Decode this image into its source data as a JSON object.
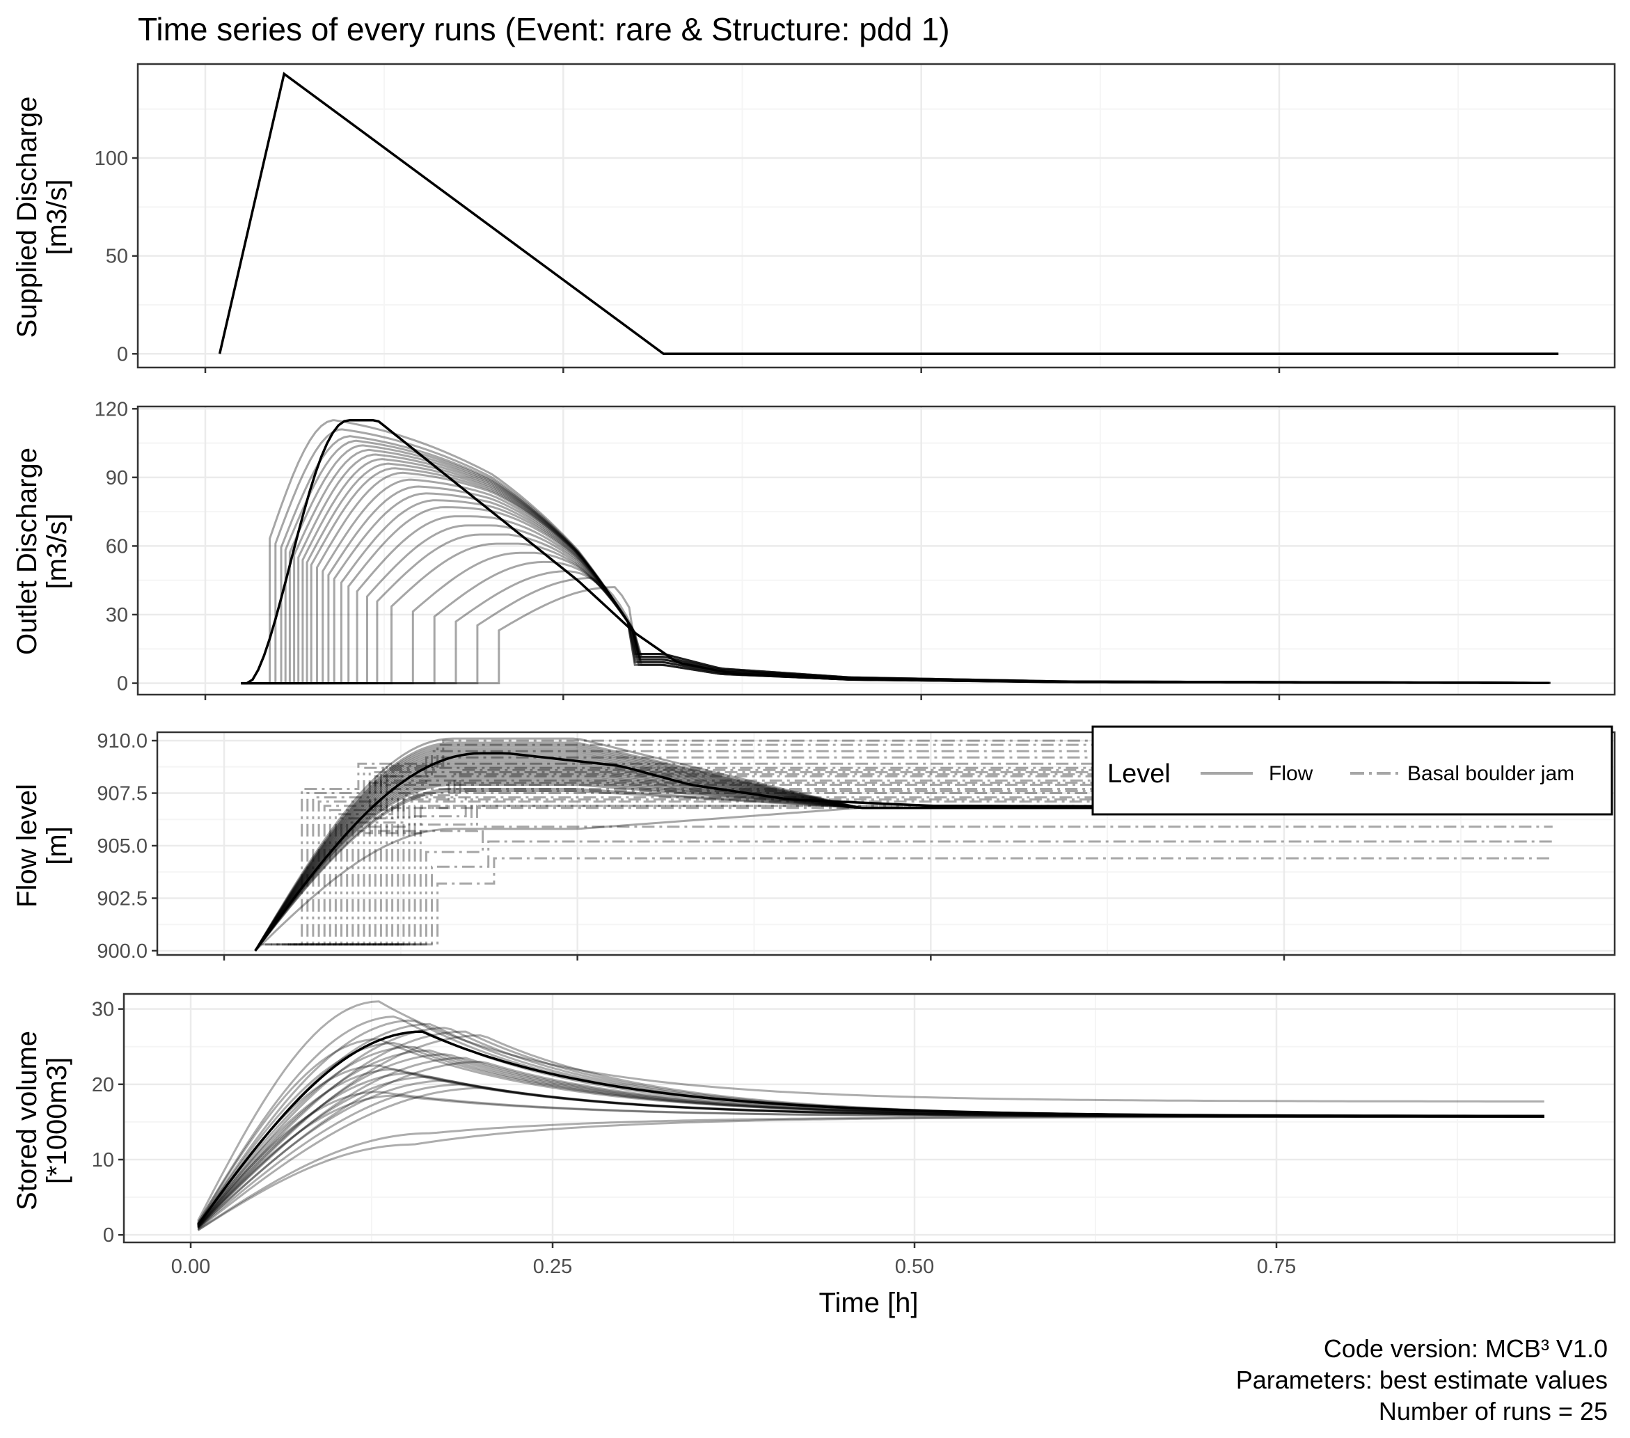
{
  "chart_data": {
    "type": "line",
    "title": "Time series of every runs (Event: rare & Structure: pdd 1)",
    "xlabel": "Time [h]",
    "xlim": [
      0,
      0.93
    ],
    "x_ticks": [
      0.0,
      0.25,
      0.5,
      0.75
    ],
    "x_tick_labels": [
      "0.00",
      "0.25",
      "0.50",
      "0.75"
    ],
    "number_of_runs": 25,
    "grid": true,
    "caption": [
      "Code version: MCB³ V1.0",
      "Parameters:  best estimate values",
      "Number of runs = 25"
    ],
    "panels": [
      {
        "ylabel": [
          "Supplied Discharge",
          "[m3/s]"
        ],
        "y_ticks": [
          0,
          50,
          100
        ],
        "y_tick_labels": [
          "0",
          "50",
          "100"
        ],
        "ylim": [
          -7,
          148
        ],
        "series": [
          {
            "style": "solid",
            "x": [
              0.01,
              0.055,
              0.32,
              0.945
            ],
            "y": [
              0,
              143,
              0,
              0
            ]
          }
        ]
      },
      {
        "ylabel": [
          "Outlet Discharge",
          "[m3/s]"
        ],
        "y_ticks": [
          0,
          30,
          60,
          90,
          120
        ],
        "y_tick_labels": [
          "0",
          "30",
          "60",
          "90",
          "120"
        ],
        "ylim": [
          -5,
          121
        ],
        "runs": {
          "t_release": [
            0.045,
            0.049,
            0.053,
            0.056,
            0.059,
            0.062,
            0.065,
            0.068,
            0.071,
            0.074,
            0.078,
            0.082,
            0.086,
            0.09,
            0.095,
            0.1,
            0.106,
            0.113,
            0.12,
            0.13,
            0.145,
            0.16,
            0.175,
            0.19,
            0.205
          ],
          "peak": [
            115,
            111,
            108,
            106,
            104,
            102,
            100,
            98,
            96,
            94,
            92,
            89,
            86,
            83,
            80,
            77,
            73,
            69,
            65,
            61,
            57,
            53,
            49,
            46,
            42
          ],
          "recession": [
            [
              0.32,
              8
            ],
            [
              0.36,
              4
            ],
            [
              0.45,
              1.6
            ],
            [
              0.6,
              0.5
            ],
            [
              0.94,
              0.1
            ]
          ]
        }
      },
      {
        "ylabel": [
          "Flow level",
          "[m]"
        ],
        "y_ticks": [
          900.0,
          902.5,
          905.0,
          907.5,
          910.0
        ],
        "y_tick_labels": [
          "900.0",
          "902.5",
          "905.0",
          "907.5",
          "910.0"
        ],
        "ylim": [
          899.8,
          910.4
        ],
        "runs": {
          "flow_peak": [
            909.8,
            909.6,
            909.5,
            909.3,
            909.2,
            909.0,
            908.8,
            908.7,
            908.5,
            908.3,
            908.1,
            907.9,
            907.7,
            907.6,
            910.1,
            909.9,
            909.7,
            909.4,
            909.1,
            908.9,
            908.6,
            908.4,
            908.2,
            905.8,
            908.0
          ],
          "jam_level": [
            908.9,
            908.7,
            908.5,
            908.3,
            908.1,
            907.9,
            907.7,
            907.5,
            907.3,
            907.1,
            906.9,
            906.8,
            909.2,
            909.5,
            909.8,
            910.0,
            908.0,
            908.4,
            908.6,
            907.6,
            907.2,
            906.9,
            905.9,
            905.2,
            904.4
          ]
        }
      },
      {
        "ylabel": [
          "Stored volume",
          "[*1000m3]"
        ],
        "y_ticks": [
          0,
          10,
          20,
          30
        ],
        "y_tick_labels": [
          "0",
          "10",
          "20",
          "30"
        ],
        "ylim": [
          -1,
          32
        ],
        "runs": {
          "peak": [
            31,
            29,
            28.5,
            28,
            27.5,
            27,
            26.5,
            26,
            25.5,
            25,
            24.5,
            24,
            23.5,
            23,
            22.5,
            22,
            21.5,
            21,
            20.5,
            20,
            19.5,
            19,
            18.5,
            12,
            13.5
          ],
          "final": [
            17.7,
            15.8,
            15.8,
            15.7,
            15.7,
            15.7,
            15.7,
            15.8,
            15.8,
            15.7,
            15.7,
            15.7,
            15.7,
            15.8,
            15.8,
            15.7,
            15.7,
            15.7,
            15.7,
            15.8,
            15.7,
            15.7,
            15.7,
            15.7,
            15.7
          ]
        }
      }
    ],
    "legend": {
      "title": "Level",
      "placement": "top-right of flow level panel",
      "entries": [
        {
          "label": "Flow",
          "style": "solid"
        },
        {
          "label": "Basal boulder jam",
          "style": "dashdot"
        }
      ]
    }
  },
  "colors": {
    "line": "#000000",
    "grid_major": "#ebebeb",
    "grid_minor": "#f5f5f5",
    "border": "#333333",
    "legend_key": "#a6a6a6"
  }
}
